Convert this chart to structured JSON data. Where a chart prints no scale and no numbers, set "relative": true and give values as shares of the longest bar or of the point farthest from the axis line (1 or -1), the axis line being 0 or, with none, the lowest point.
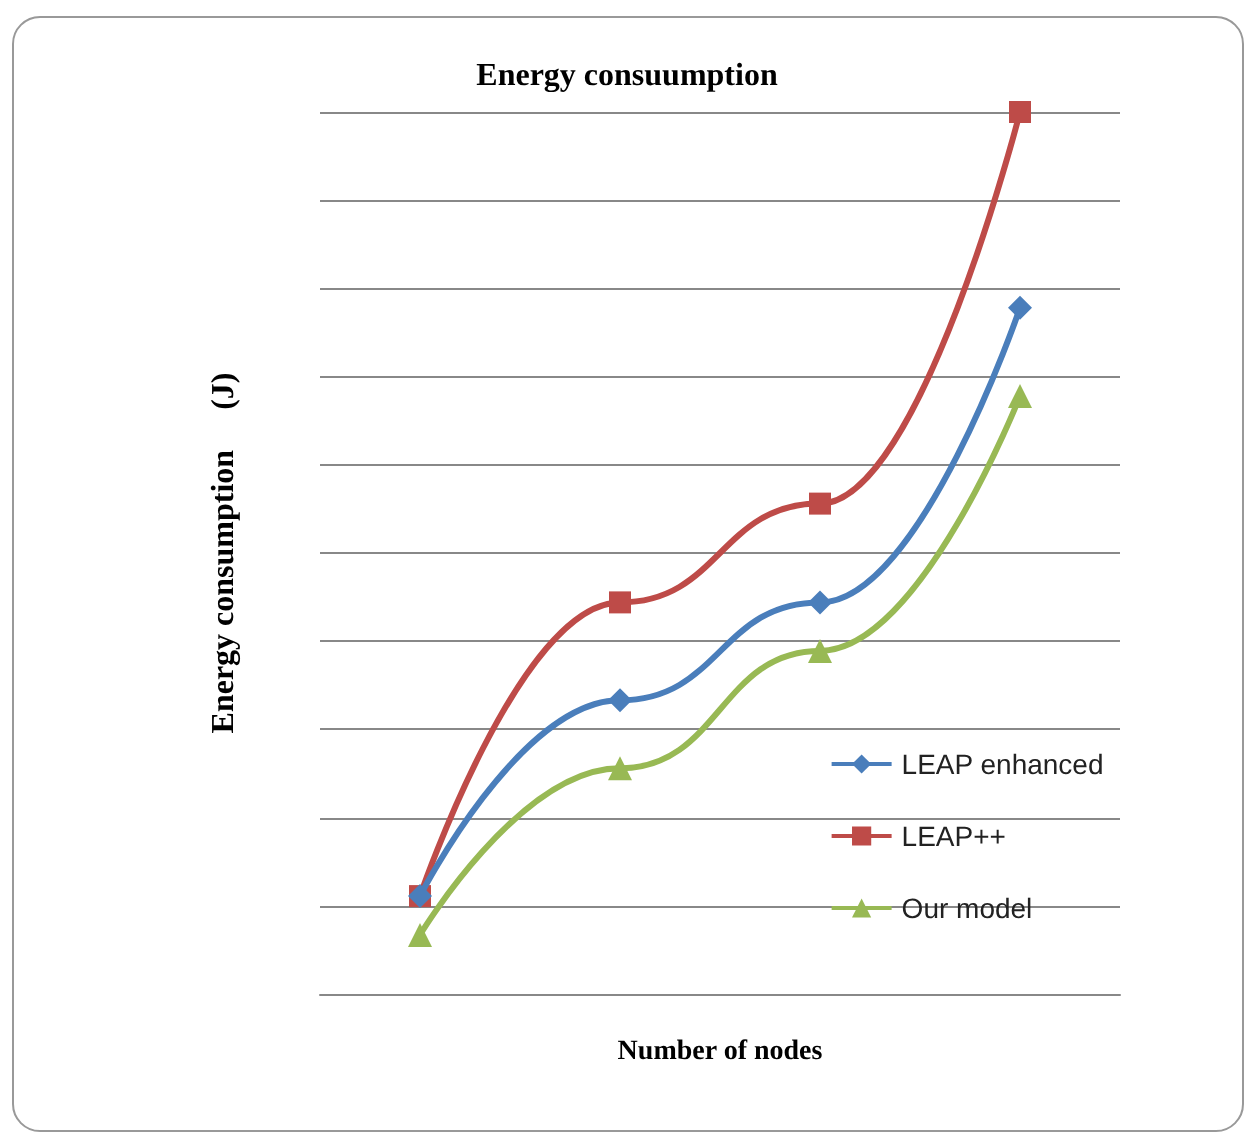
{
  "chart_data": {
    "type": "line",
    "title": "Energy consuumption",
    "xlabel": "Number of nodes",
    "ylabel": "Energy consumption     (J)",
    "categories": [
      null,
      null,
      null,
      null
    ],
    "relative": true,
    "grid": "y",
    "legend": "right",
    "line_style": "solid",
    "series": [
      {
        "name": "LEAP enhanced",
        "color": "#4a7ebb",
        "marker": "diamond",
        "values": [
          0.111,
          0.333,
          0.444,
          0.778
        ]
      },
      {
        "name": "LEAP++",
        "color": "#be4b48",
        "marker": "square",
        "values": [
          0.111,
          0.444,
          0.556,
          1
        ]
      },
      {
        "name": "Our model",
        "color": "#98b954",
        "marker": "triangle",
        "values": [
          0.067,
          0.256,
          0.389,
          0.678
        ]
      }
    ]
  }
}
